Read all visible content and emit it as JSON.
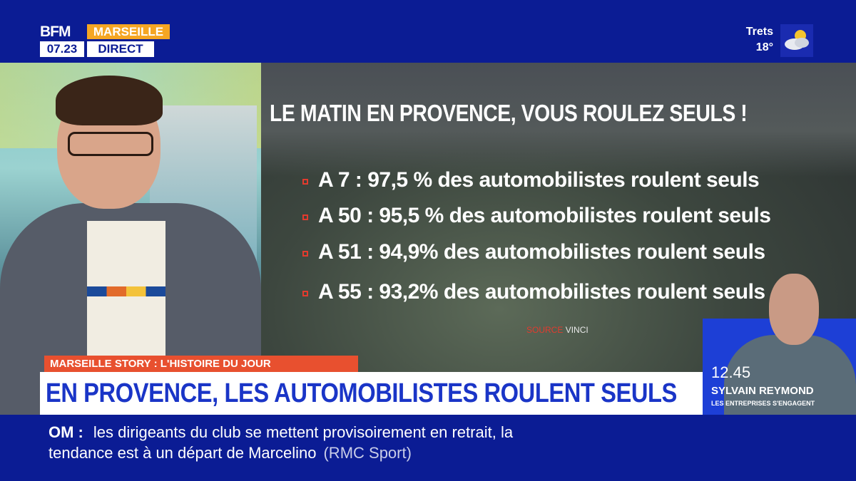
{
  "channel": {
    "logo": "BFM",
    "time": "07.23",
    "city": "MARSEILLE",
    "live": "DIRECT"
  },
  "weather": {
    "town": "Trets",
    "temperature": "18°",
    "icon": "cloud-sun-icon"
  },
  "panel": {
    "title": "LE MATIN EN PROVENCE, VOUS ROULEZ SEULS !",
    "stats": [
      "A 7 : 97,5 % des automobilistes roulent seuls",
      "A 50 : 95,5 % des automobilistes roulent seuls",
      "A 51 : 94,9% des automobilistes roulent seuls",
      "A 55 : 93,2% des automobilistes roulent seuls"
    ],
    "source_label": "SOURCE",
    "source_org": "VINCI"
  },
  "guest": {
    "time": "12.45",
    "name": "SYLVAIN REYMOND",
    "show": "LES ENTREPRISES S'ENGAGENT"
  },
  "lower_third": {
    "kicker": "MARSEILLE STORY : L'HISTOIRE DU JOUR",
    "headline": "EN PROVENCE, LES AUTOMOBILISTES ROULENT SEULS"
  },
  "ticker": {
    "tag": "OM :",
    "line1": "les dirigeants du club se mettent provisoirement en retrait, la",
    "line2": "tendance est à un départ de Marcelino",
    "source": "(RMC Sport)"
  },
  "colors": {
    "brand_blue": "#0b1c94",
    "accent_orange": "#f5a623",
    "kicker_red": "#e8502f",
    "headline_blue": "#1a35c7"
  }
}
